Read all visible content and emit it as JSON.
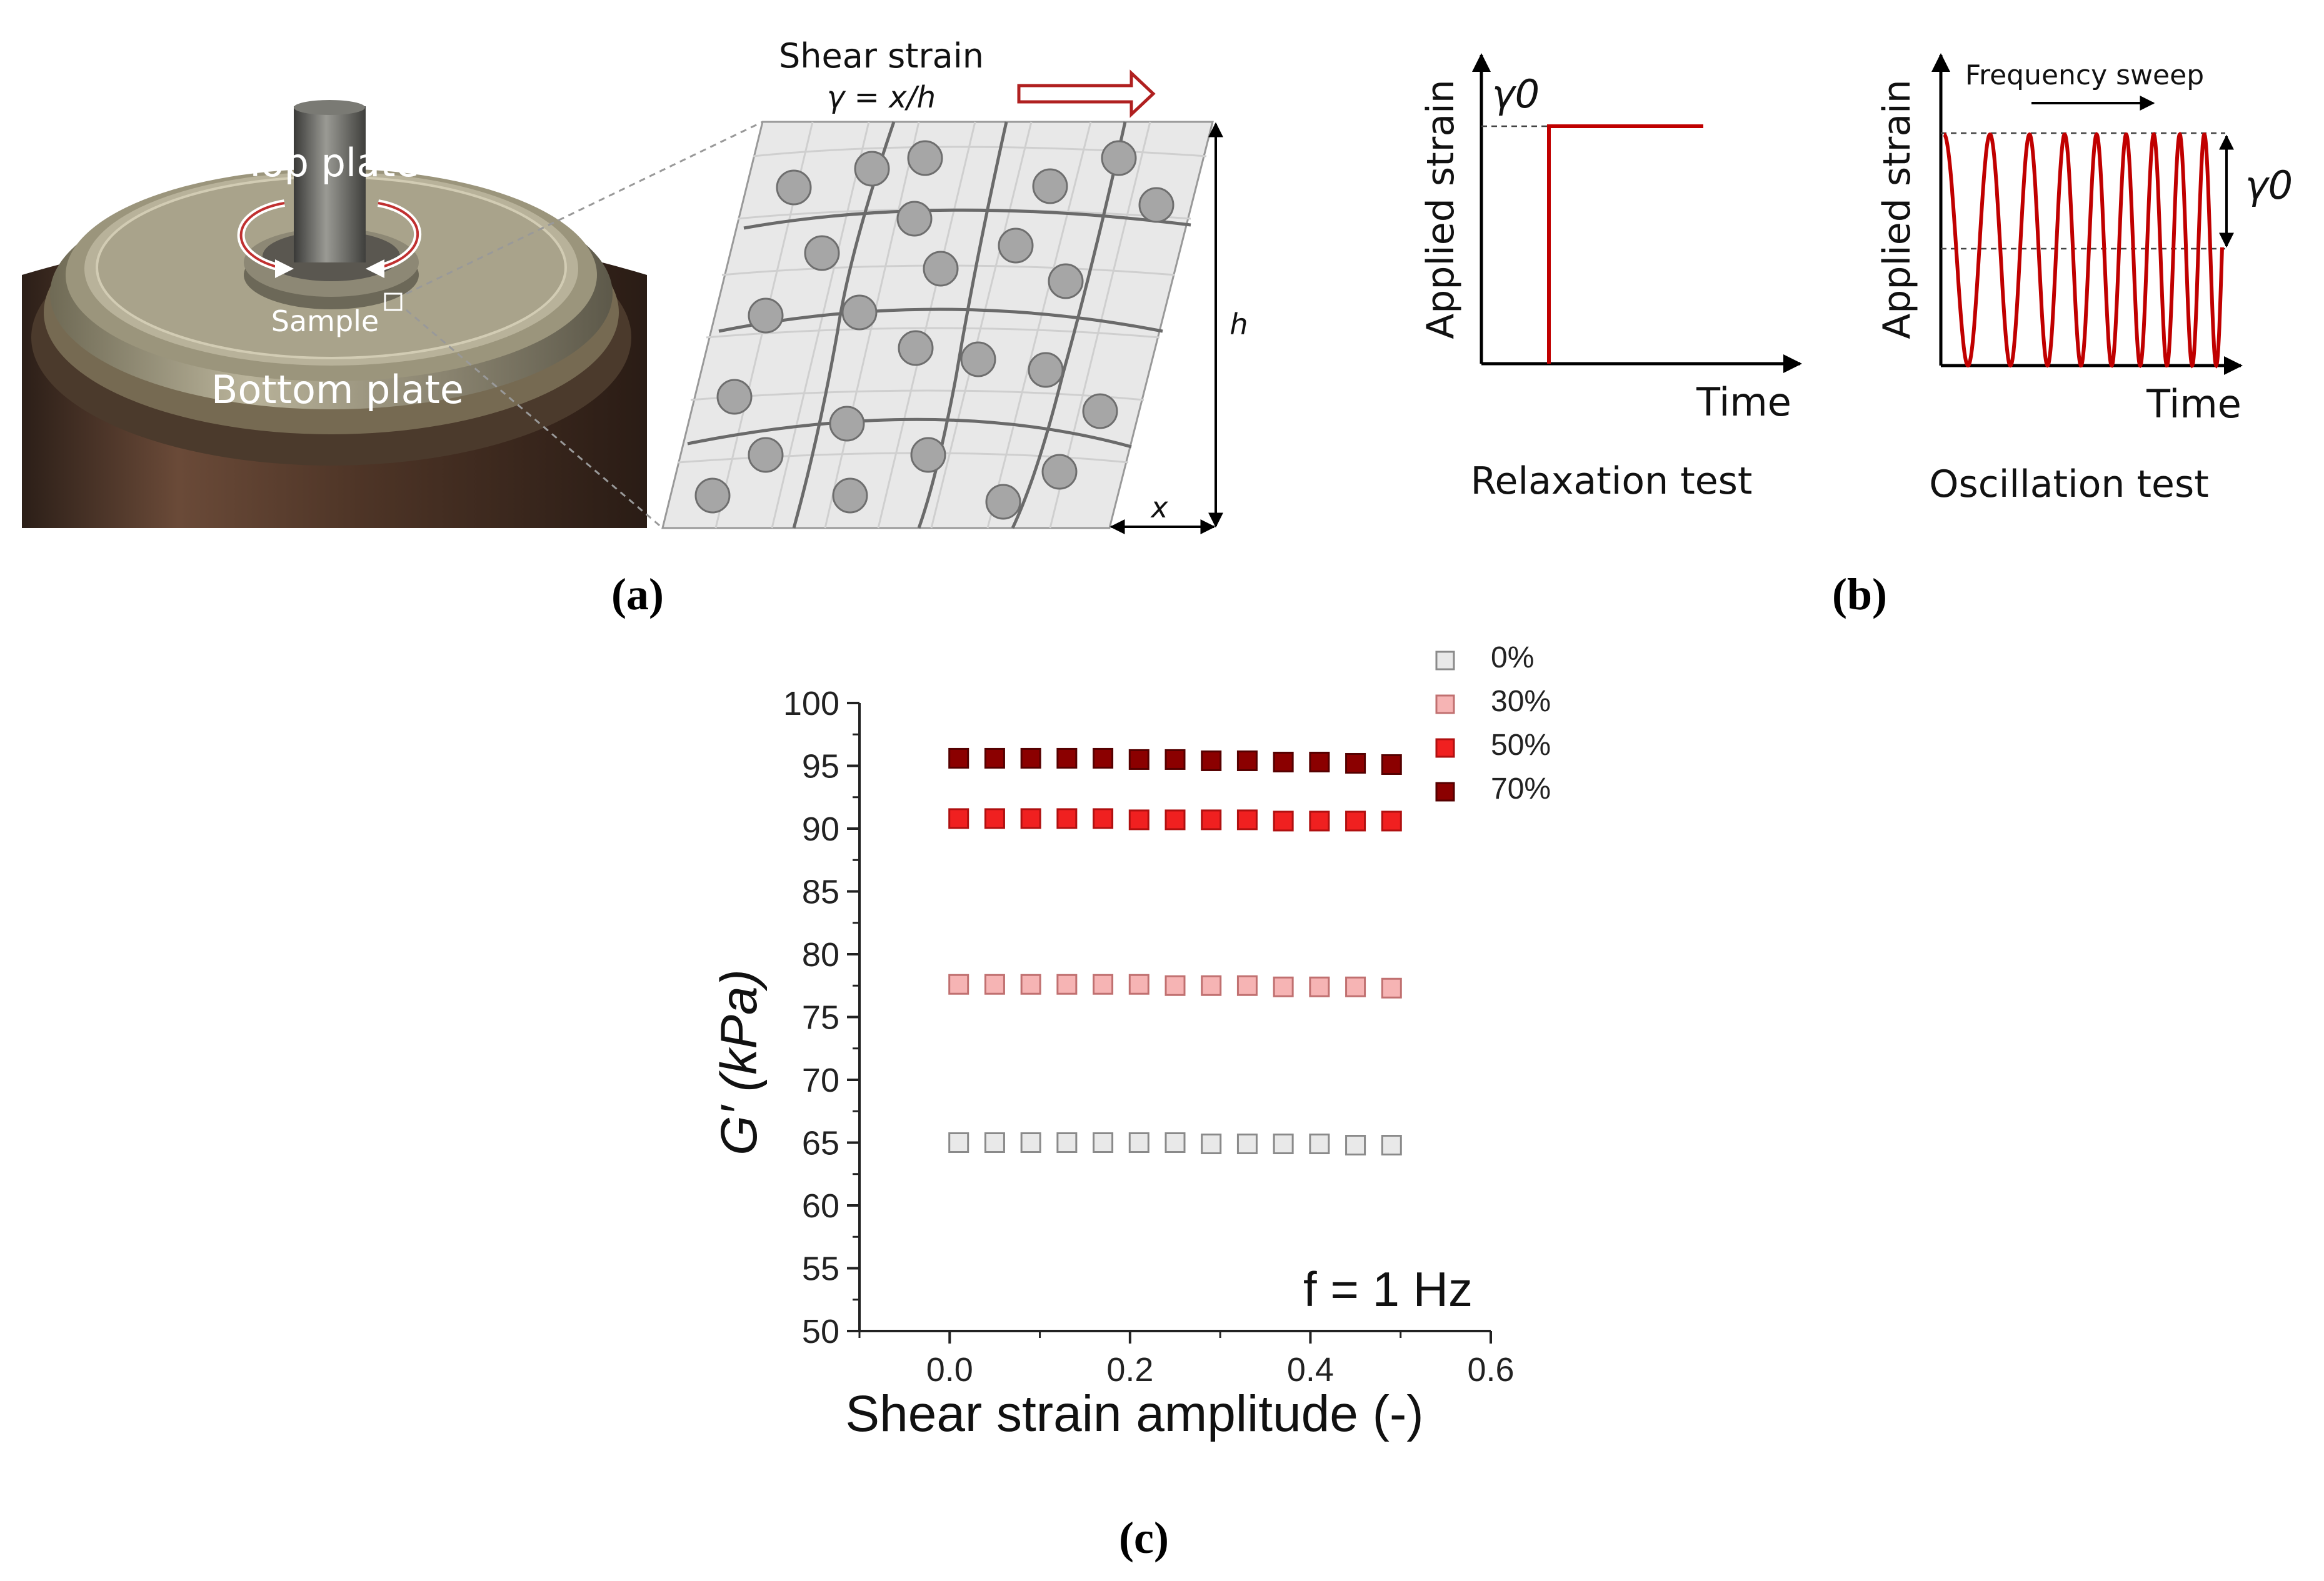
{
  "panel_a": {
    "top_plate": "Top plate",
    "sample": "Sample",
    "bottom_plate": "Bottom plate",
    "shear_title": "Shear strain",
    "shear_formula": "γ = x/h",
    "h_label": "h",
    "x_label": "x",
    "caption": "(a)"
  },
  "panel_b": {
    "relax": {
      "ylabel": "Applied strain",
      "xlabel": "Time",
      "gamma": "γ0",
      "title": "Relaxation test"
    },
    "osc": {
      "ylabel": "Applied strain",
      "xlabel": "Time",
      "gamma": "γ0",
      "sweep": "Frequency sweep",
      "title": "Oscillation test"
    },
    "caption": "(b)"
  },
  "panel_c": {
    "caption": "(c)",
    "annotation": "f = 1 Hz"
  },
  "colors": {
    "accent_red": "#c00000",
    "s0": "#e9e9e9",
    "s30": "#f6b4b4",
    "s50": "#f02020",
    "s70": "#8b0000"
  },
  "chart_data": {
    "type": "scatter",
    "title": "",
    "xlabel": "Shear strain amplitude (-)",
    "ylabel": "G′ (kPa)",
    "xlim": [
      -0.1,
      0.6
    ],
    "ylim": [
      50,
      100
    ],
    "xticks": [
      "0.0",
      "0.2",
      "0.4",
      "0.6"
    ],
    "yticks": [
      "50",
      "55",
      "60",
      "65",
      "70",
      "75",
      "80",
      "85",
      "90",
      "95",
      "100"
    ],
    "legend_position": "top-right",
    "x": [
      0.01,
      0.05,
      0.09,
      0.13,
      0.17,
      0.21,
      0.25,
      0.29,
      0.33,
      0.37,
      0.41,
      0.45,
      0.49
    ],
    "series": [
      {
        "name": "0%",
        "values": [
          65.0,
          65.0,
          65.0,
          65.0,
          65.0,
          65.0,
          65.0,
          64.9,
          64.9,
          64.9,
          64.9,
          64.8,
          64.8
        ]
      },
      {
        "name": "30%",
        "values": [
          77.6,
          77.6,
          77.6,
          77.6,
          77.6,
          77.6,
          77.5,
          77.5,
          77.5,
          77.4,
          77.4,
          77.4,
          77.3
        ]
      },
      {
        "name": "50%",
        "values": [
          90.8,
          90.8,
          90.8,
          90.8,
          90.8,
          90.7,
          90.7,
          90.7,
          90.7,
          90.6,
          90.6,
          90.6,
          90.6
        ]
      },
      {
        "name": "70%",
        "values": [
          95.6,
          95.6,
          95.6,
          95.6,
          95.6,
          95.5,
          95.5,
          95.4,
          95.4,
          95.3,
          95.3,
          95.2,
          95.1
        ]
      }
    ]
  }
}
